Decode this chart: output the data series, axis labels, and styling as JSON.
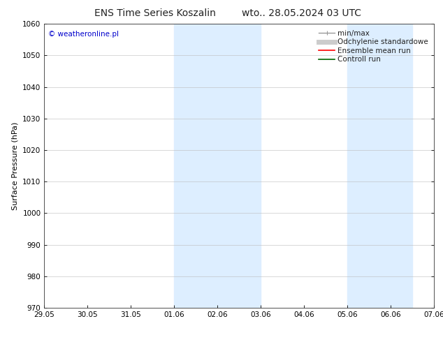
{
  "title_left": "ENS Time Series Koszalin",
  "title_right": "wto.. 28.05.2024 03 UTC",
  "ylabel": "Surface Pressure (hPa)",
  "ylim": [
    970,
    1060
  ],
  "yticks": [
    970,
    980,
    990,
    1000,
    1010,
    1020,
    1030,
    1040,
    1050,
    1060
  ],
  "xtick_labels": [
    "29.05",
    "30.05",
    "31.05",
    "01.06",
    "02.06",
    "03.06",
    "04.06",
    "05.06",
    "06.06",
    "07.06"
  ],
  "xtick_positions": [
    0,
    1,
    2,
    3,
    4,
    5,
    6,
    7,
    8,
    9
  ],
  "shaded_bands": [
    {
      "x_start": 3.0,
      "x_end": 5.0
    },
    {
      "x_start": 7.0,
      "x_end": 8.5
    }
  ],
  "watermark": "© weatheronline.pl",
  "watermark_color": "#0000cc",
  "bg_color": "#ffffff",
  "plot_bg_color": "#ffffff",
  "shade_color": "#ddeeff",
  "grid_color": "#bbbbbb",
  "legend_entries": [
    {
      "label": "min/max",
      "color": "#999999",
      "lw": 1.0
    },
    {
      "label": "Odchylenie standardowe",
      "color": "#cccccc",
      "lw": 5
    },
    {
      "label": "Ensemble mean run",
      "color": "#ff0000",
      "lw": 1.2
    },
    {
      "label": "Controll run",
      "color": "#006600",
      "lw": 1.2
    }
  ],
  "title_fontsize": 10,
  "tick_fontsize": 7.5,
  "ylabel_fontsize": 8,
  "watermark_fontsize": 7.5,
  "legend_fontsize": 7.5
}
